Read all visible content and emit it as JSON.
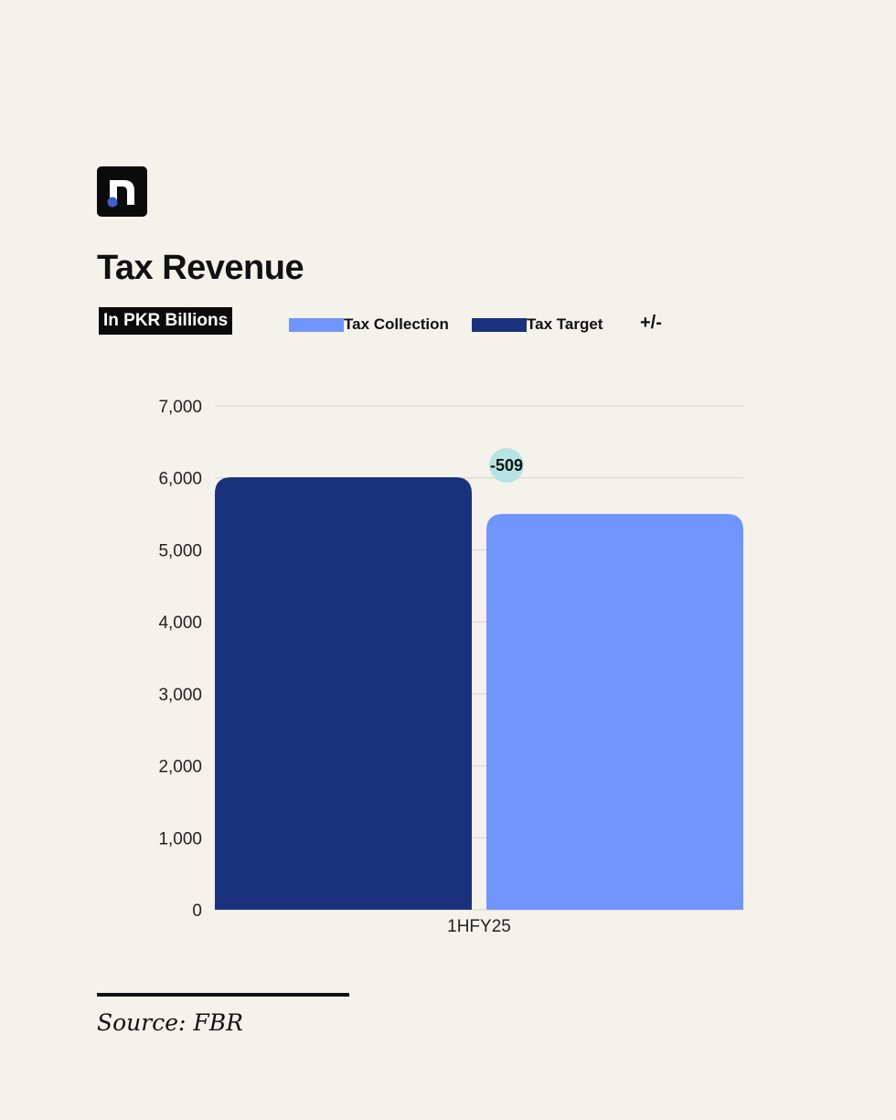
{
  "brand": {
    "logo_icon": "n-logo-icon",
    "logo_color": "#0b0b0b",
    "dot_color": "#3f5fc8"
  },
  "header": {
    "title": "Tax Revenue",
    "unit": "In PKR Billions"
  },
  "legend": [
    {
      "label": "Tax Collection",
      "color": "#7195ff"
    },
    {
      "label": "Tax Target",
      "color": "#1a327d"
    },
    {
      "label": "+/-",
      "color": ""
    }
  ],
  "chart_data": {
    "type": "bar",
    "categories": [
      "1HFY25"
    ],
    "series": [
      {
        "name": "Tax Target",
        "values": [
          6009
        ],
        "color": "#1a327d"
      },
      {
        "name": "Tax Collection",
        "values": [
          5500
        ],
        "color": "#7195ff"
      }
    ],
    "difference": {
      "label": "-509",
      "value": -509,
      "color": "#b6e4e4"
    },
    "ylim": [
      0,
      7000
    ],
    "yticks": [
      0,
      1000,
      2000,
      3000,
      4000,
      5000,
      6000,
      7000
    ],
    "ytick_labels": [
      "0",
      "1,000",
      "2,000",
      "3,000",
      "4,000",
      "5,000",
      "6,000",
      "7,000"
    ],
    "grid": true,
    "legend_position": "top"
  },
  "footer": {
    "source": "Source: FBR"
  }
}
